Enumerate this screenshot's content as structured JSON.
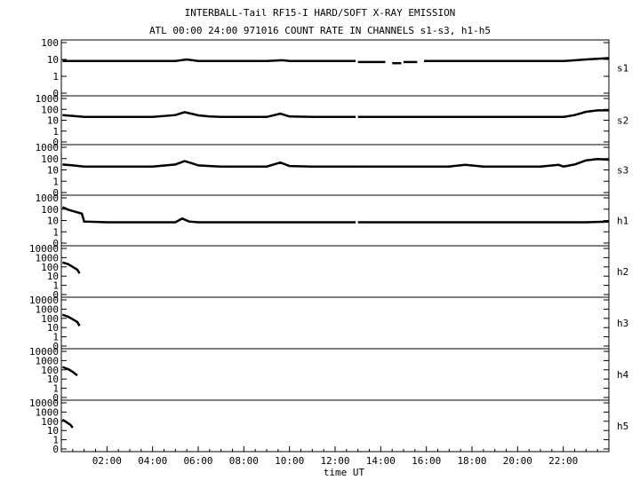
{
  "chart_data": {
    "type": "line",
    "title": "INTERBALL-Tail RF15-I HARD/SOFT X-RAY EMISSION",
    "subtitle": "ATL 00:00 24:00 971016  COUNT RATE IN CHANNELS s1-s3, h1-h5",
    "xlabel": "time UT",
    "x_ticks": [
      "02:00",
      "04:00",
      "06:00",
      "08:00",
      "10:00",
      "12:00",
      "14:00",
      "16:00",
      "18:00",
      "20:00",
      "22:00"
    ],
    "xlim": [
      0,
      24
    ],
    "yscale": "log",
    "grid": false,
    "panels": [
      {
        "name": "s1",
        "y_ticks": [
          "100",
          "10",
          "1",
          "0"
        ],
        "series": [
          {
            "segments": [
              {
                "x": [
                  0.05,
                  0.3,
                  0.7,
                  1.0,
                  2.0,
                  3.0,
                  4.0,
                  5.0,
                  5.5,
                  6.0,
                  7.0,
                  8.0,
                  9.0,
                  9.7,
                  10.0,
                  11.0,
                  12.0,
                  12.9
                ],
                "y": [
                  8,
                  8,
                  8,
                  8,
                  8,
                  8,
                  8,
                  8,
                  10,
                  8,
                  8,
                  8,
                  8,
                  9,
                  8,
                  8,
                  8,
                  8
                ]
              },
              {
                "x": [
                  13.0,
                  14.2
                ],
                "y": [
                  7,
                  7
                ]
              },
              {
                "x": [
                  14.5,
                  14.9
                ],
                "y": [
                  6,
                  6
                ]
              },
              {
                "x": [
                  15.0,
                  15.6
                ],
                "y": [
                  7,
                  7
                ]
              },
              {
                "x": [
                  15.9,
                  17.0,
                  18.0,
                  19.0,
                  20.0,
                  21.0,
                  22.0,
                  23.0,
                  24.0
                ],
                "y": [
                  8,
                  8,
                  8,
                  8,
                  8,
                  8,
                  8,
                  10,
                  12
                ]
              }
            ]
          }
        ]
      },
      {
        "name": "s2",
        "y_ticks": [
          "1000",
          "100",
          "10",
          "1",
          "0"
        ],
        "series": [
          {
            "segments": [
              {
                "x": [
                  0.05,
                  0.5,
                  1.0,
                  2.0,
                  3.0,
                  4.0,
                  5.0,
                  5.4,
                  5.7,
                  6.0,
                  6.5,
                  7.0,
                  8.0,
                  9.0,
                  9.6,
                  10.0,
                  11.0,
                  12.0,
                  12.9
                ],
                "y": [
                  30,
                  25,
                  20,
                  20,
                  20,
                  20,
                  30,
                  55,
                  40,
                  28,
                  22,
                  20,
                  20,
                  20,
                  40,
                  22,
                  20,
                  20,
                  20
                ]
              },
              {
                "x": [
                  13.0,
                  16.0,
                  18.0,
                  20.0,
                  22.0,
                  22.5,
                  23.0,
                  23.5,
                  24.0
                ],
                "y": [
                  20,
                  20,
                  20,
                  20,
                  20,
                  30,
                  60,
                  80,
                  80
                ]
              }
            ]
          }
        ]
      },
      {
        "name": "s3",
        "y_ticks": [
          "1000",
          "100",
          "10",
          "1",
          "0"
        ],
        "series": [
          {
            "segments": [
              {
                "x": [
                  0.05,
                  0.5,
                  1.0,
                  2.0,
                  3.0,
                  4.0,
                  5.0,
                  5.4,
                  5.7,
                  6.0,
                  6.5,
                  7.0,
                  8.0,
                  9.0,
                  9.6,
                  10.0,
                  11.0,
                  12.0,
                  13.0
                ],
                "y": [
                  30,
                  25,
                  20,
                  20,
                  20,
                  20,
                  30,
                  60,
                  40,
                  25,
                  22,
                  20,
                  20,
                  20,
                  45,
                  22,
                  20,
                  20,
                  20
                ]
              },
              {
                "x": [
                  13.0,
                  14.0,
                  15.0,
                  16.0,
                  17.0,
                  17.7,
                  18.5,
                  19.0,
                  20.0,
                  21.0,
                  21.8,
                  22.0,
                  22.5,
                  23.0,
                  23.5,
                  24.0
                ],
                "y": [
                  20,
                  20,
                  20,
                  20,
                  20,
                  28,
                  20,
                  20,
                  20,
                  20,
                  28,
                  20,
                  30,
                  70,
                  90,
                  80
                ]
              }
            ]
          }
        ]
      },
      {
        "name": "h1",
        "y_ticks": [
          "1000",
          "100",
          "10",
          "1",
          "0"
        ],
        "series": [
          {
            "segments": [
              {
                "x": [
                  0.05,
                  0.3,
                  0.6,
                  0.9,
                  1.0,
                  2.0,
                  3.0,
                  4.0,
                  5.0,
                  5.3,
                  5.6,
                  6.0,
                  7.0,
                  8.0,
                  9.0,
                  10.0,
                  11.0,
                  12.0,
                  12.9
                ],
                "y": [
                  150,
                  90,
                  60,
                  40,
                  8,
                  7,
                  7,
                  7,
                  7,
                  15,
                  8,
                  7,
                  7,
                  7,
                  7,
                  7,
                  7,
                  7,
                  7
                ]
              },
              {
                "x": [
                  13.0,
                  14.0,
                  15.0,
                  16.0,
                  17.0,
                  18.0,
                  19.0,
                  20.0,
                  21.0,
                  22.0,
                  23.0,
                  24.0
                ],
                "y": [
                  7,
                  7,
                  7,
                  7,
                  7,
                  7,
                  7,
                  7,
                  7,
                  7,
                  7,
                  8
                ]
              }
            ]
          }
        ]
      },
      {
        "name": "h2",
        "y_ticks": [
          "10000",
          "1000",
          "100",
          "10",
          "1",
          "0"
        ],
        "series": [
          {
            "segments": [
              {
                "x": [
                  0.05,
                  0.3,
                  0.5,
                  0.7,
                  0.8
                ],
                "y": [
                  300,
                  200,
                  100,
                  50,
                  20
                ]
              }
            ]
          }
        ]
      },
      {
        "name": "h3",
        "y_ticks": [
          "10000",
          "1000",
          "100",
          "10",
          "1",
          "0"
        ],
        "series": [
          {
            "segments": [
              {
                "x": [
                  0.05,
                  0.3,
                  0.5,
                  0.7,
                  0.8
                ],
                "y": [
                  250,
                  150,
                  80,
                  40,
                  15
                ]
              }
            ]
          }
        ]
      },
      {
        "name": "h4",
        "y_ticks": [
          "10000",
          "1000",
          "100",
          "10",
          "1",
          "0"
        ],
        "series": [
          {
            "segments": [
              {
                "x": [
                  0.05,
                  0.3,
                  0.5,
                  0.7
                ],
                "y": [
                  200,
                  120,
                  60,
                  25
                ]
              }
            ]
          }
        ]
      },
      {
        "name": "h5",
        "y_ticks": [
          "10000",
          "1000",
          "100",
          "10",
          "1",
          "0"
        ],
        "series": [
          {
            "segments": [
              {
                "x": [
                  0.05,
                  0.2,
                  0.4,
                  0.5
                ],
                "y": [
                  150,
                  90,
                  40,
                  20
                ]
              }
            ]
          }
        ]
      }
    ]
  }
}
